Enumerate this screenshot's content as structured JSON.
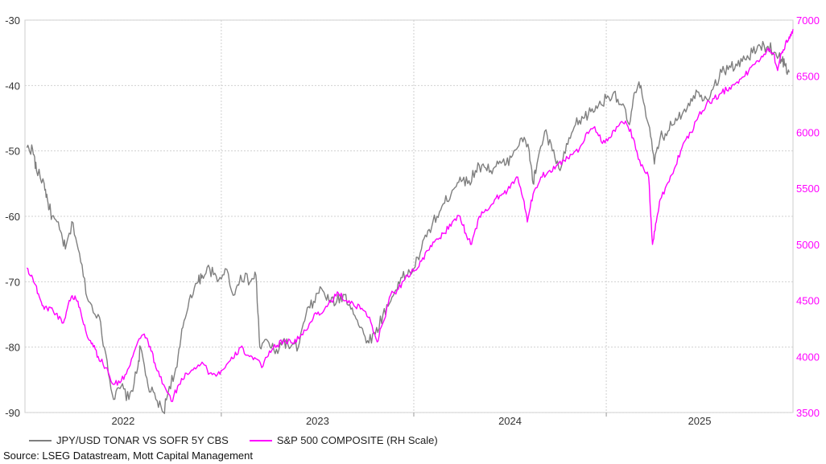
{
  "chart_data": {
    "type": "line",
    "title": "",
    "source": "Source: LSEG Datastream, Mott Capital Management",
    "x_labels": [
      "2022",
      "2023",
      "2024",
      "2025"
    ],
    "left_axis": {
      "min": -90,
      "max": -30,
      "ticks": [
        -30,
        -40,
        -50,
        -60,
        -70,
        -80,
        -90
      ],
      "color": "#333333"
    },
    "right_axis": {
      "min": 3500,
      "max": 7000,
      "ticks": [
        7000,
        6500,
        6000,
        5500,
        5000,
        4500,
        4000,
        3500
      ],
      "color": "#ff00ff"
    },
    "x_range": [
      2021.98,
      2025.97
    ],
    "series": [
      {
        "name": "JPY/USD TONAR VS SOFR 5Y CBS",
        "axis": "left",
        "color": "#7f7f7f",
        "points": [
          [
            2021.99,
            -49.5
          ],
          [
            2022.02,
            -49.8
          ],
          [
            2022.04,
            -53
          ],
          [
            2022.08,
            -55
          ],
          [
            2022.1,
            -58
          ],
          [
            2022.12,
            -60
          ],
          [
            2022.16,
            -62
          ],
          [
            2022.19,
            -65
          ],
          [
            2022.23,
            -61
          ],
          [
            2022.27,
            -67
          ],
          [
            2022.31,
            -73
          ],
          [
            2022.36,
            -75
          ],
          [
            2022.4,
            -81
          ],
          [
            2022.44,
            -88
          ],
          [
            2022.48,
            -86
          ],
          [
            2022.52,
            -88
          ],
          [
            2022.56,
            -84
          ],
          [
            2022.58,
            -80
          ],
          [
            2022.62,
            -86
          ],
          [
            2022.66,
            -88
          ],
          [
            2022.7,
            -90
          ],
          [
            2022.73,
            -86
          ],
          [
            2022.77,
            -83
          ],
          [
            2022.8,
            -77
          ],
          [
            2022.84,
            -72
          ],
          [
            2022.88,
            -70
          ],
          [
            2022.9,
            -69
          ],
          [
            2022.94,
            -68
          ],
          [
            2022.98,
            -70
          ],
          [
            2023.02,
            -68
          ],
          [
            2023.07,
            -72
          ],
          [
            2023.1,
            -69
          ],
          [
            2023.15,
            -70
          ],
          [
            2023.18,
            -69
          ],
          [
            2023.2,
            -80
          ],
          [
            2023.24,
            -79
          ],
          [
            2023.28,
            -81
          ],
          [
            2023.32,
            -79
          ],
          [
            2023.36,
            -80
          ],
          [
            2023.4,
            -80
          ],
          [
            2023.44,
            -75
          ],
          [
            2023.48,
            -73
          ],
          [
            2023.52,
            -71
          ],
          [
            2023.56,
            -73
          ],
          [
            2023.6,
            -73
          ],
          [
            2023.64,
            -72
          ],
          [
            2023.68,
            -74
          ],
          [
            2023.72,
            -77
          ],
          [
            2023.76,
            -79
          ],
          [
            2023.8,
            -78
          ],
          [
            2023.84,
            -75
          ],
          [
            2023.88,
            -73
          ],
          [
            2023.92,
            -70
          ],
          [
            2023.96,
            -69
          ],
          [
            2024.0,
            -68
          ],
          [
            2024.04,
            -65
          ],
          [
            2024.08,
            -62
          ],
          [
            2024.12,
            -60
          ],
          [
            2024.16,
            -58
          ],
          [
            2024.2,
            -56
          ],
          [
            2024.24,
            -54
          ],
          [
            2024.28,
            -55
          ],
          [
            2024.32,
            -53
          ],
          [
            2024.36,
            -52
          ],
          [
            2024.4,
            -53
          ],
          [
            2024.44,
            -52
          ],
          [
            2024.48,
            -52
          ],
          [
            2024.52,
            -50
          ],
          [
            2024.56,
            -48
          ],
          [
            2024.6,
            -50
          ],
          [
            2024.62,
            -55
          ],
          [
            2024.64,
            -52
          ],
          [
            2024.68,
            -47
          ],
          [
            2024.72,
            -50
          ],
          [
            2024.76,
            -53
          ],
          [
            2024.8,
            -49
          ],
          [
            2024.84,
            -46
          ],
          [
            2024.88,
            -45
          ],
          [
            2024.92,
            -44
          ],
          [
            2024.96,
            -43
          ],
          [
            2025.0,
            -42
          ],
          [
            2025.04,
            -41
          ],
          [
            2025.08,
            -43
          ],
          [
            2025.12,
            -46
          ],
          [
            2025.15,
            -41
          ],
          [
            2025.18,
            -40
          ],
          [
            2025.22,
            -46
          ],
          [
            2025.25,
            -52
          ],
          [
            2025.28,
            -48
          ],
          [
            2025.32,
            -47
          ],
          [
            2025.36,
            -45
          ],
          [
            2025.4,
            -44
          ],
          [
            2025.44,
            -42
          ],
          [
            2025.48,
            -41
          ],
          [
            2025.52,
            -42
          ],
          [
            2025.56,
            -40
          ],
          [
            2025.6,
            -38
          ],
          [
            2025.64,
            -37
          ],
          [
            2025.68,
            -37
          ],
          [
            2025.72,
            -36
          ],
          [
            2025.76,
            -35
          ],
          [
            2025.8,
            -34
          ],
          [
            2025.84,
            -34
          ],
          [
            2025.88,
            -35
          ],
          [
            2025.91,
            -36
          ],
          [
            2025.93,
            -37
          ],
          [
            2025.95,
            -38
          ]
        ]
      },
      {
        "name": "S&P 500 COMPOSITE (RH Scale)",
        "axis": "right",
        "color": "#ff00ff",
        "points": [
          [
            2021.99,
            4790
          ],
          [
            2022.02,
            4700
          ],
          [
            2022.05,
            4560
          ],
          [
            2022.08,
            4420
          ],
          [
            2022.11,
            4440
          ],
          [
            2022.14,
            4380
          ],
          [
            2022.18,
            4300
          ],
          [
            2022.21,
            4500
          ],
          [
            2022.24,
            4540
          ],
          [
            2022.27,
            4400
          ],
          [
            2022.3,
            4200
          ],
          [
            2022.33,
            4120
          ],
          [
            2022.36,
            4000
          ],
          [
            2022.4,
            3900
          ],
          [
            2022.44,
            3750
          ],
          [
            2022.48,
            3780
          ],
          [
            2022.52,
            3900
          ],
          [
            2022.56,
            4100
          ],
          [
            2022.6,
            4200
          ],
          [
            2022.63,
            4090
          ],
          [
            2022.66,
            3900
          ],
          [
            2022.7,
            3750
          ],
          [
            2022.74,
            3600
          ],
          [
            2022.78,
            3750
          ],
          [
            2022.82,
            3850
          ],
          [
            2022.86,
            3900
          ],
          [
            2022.9,
            3950
          ],
          [
            2022.94,
            3850
          ],
          [
            2022.98,
            3840
          ],
          [
            2023.02,
            3900
          ],
          [
            2023.06,
            3980
          ],
          [
            2023.1,
            4080
          ],
          [
            2023.14,
            4010
          ],
          [
            2023.18,
            3980
          ],
          [
            2023.21,
            3900
          ],
          [
            2023.25,
            4050
          ],
          [
            2023.29,
            4100
          ],
          [
            2023.33,
            4150
          ],
          [
            2023.37,
            4120
          ],
          [
            2023.41,
            4180
          ],
          [
            2023.45,
            4250
          ],
          [
            2023.49,
            4390
          ],
          [
            2023.53,
            4400
          ],
          [
            2023.57,
            4500
          ],
          [
            2023.61,
            4560
          ],
          [
            2023.65,
            4500
          ],
          [
            2023.69,
            4450
          ],
          [
            2023.73,
            4430
          ],
          [
            2023.77,
            4350
          ],
          [
            2023.81,
            4130
          ],
          [
            2023.84,
            4300
          ],
          [
            2023.88,
            4550
          ],
          [
            2023.92,
            4600
          ],
          [
            2023.96,
            4720
          ],
          [
            2024.0,
            4760
          ],
          [
            2024.04,
            4850
          ],
          [
            2024.08,
            4950
          ],
          [
            2024.12,
            5050
          ],
          [
            2024.16,
            5100
          ],
          [
            2024.2,
            5200
          ],
          [
            2024.24,
            5250
          ],
          [
            2024.27,
            5100
          ],
          [
            2024.3,
            5000
          ],
          [
            2024.34,
            5250
          ],
          [
            2024.38,
            5300
          ],
          [
            2024.42,
            5400
          ],
          [
            2024.46,
            5450
          ],
          [
            2024.5,
            5500
          ],
          [
            2024.54,
            5600
          ],
          [
            2024.57,
            5400
          ],
          [
            2024.59,
            5200
          ],
          [
            2024.62,
            5450
          ],
          [
            2024.66,
            5600
          ],
          [
            2024.7,
            5650
          ],
          [
            2024.74,
            5700
          ],
          [
            2024.78,
            5750
          ],
          [
            2024.82,
            5800
          ],
          [
            2024.86,
            5850
          ],
          [
            2024.9,
            6000
          ],
          [
            2024.94,
            6050
          ],
          [
            2024.98,
            5900
          ],
          [
            2025.02,
            5950
          ],
          [
            2025.06,
            6050
          ],
          [
            2025.1,
            6100
          ],
          [
            2025.14,
            5950
          ],
          [
            2025.18,
            5700
          ],
          [
            2025.22,
            5600
          ],
          [
            2025.24,
            5000
          ],
          [
            2025.26,
            5200
          ],
          [
            2025.28,
            5400
          ],
          [
            2025.32,
            5550
          ],
          [
            2025.36,
            5700
          ],
          [
            2025.4,
            5900
          ],
          [
            2025.44,
            6000
          ],
          [
            2025.48,
            6150
          ],
          [
            2025.52,
            6250
          ],
          [
            2025.56,
            6300
          ],
          [
            2025.6,
            6350
          ],
          [
            2025.64,
            6400
          ],
          [
            2025.68,
            6450
          ],
          [
            2025.72,
            6500
          ],
          [
            2025.76,
            6600
          ],
          [
            2025.8,
            6650
          ],
          [
            2025.84,
            6750
          ],
          [
            2025.87,
            6700
          ],
          [
            2025.89,
            6550
          ],
          [
            2025.91,
            6700
          ],
          [
            2025.93,
            6780
          ],
          [
            2025.95,
            6850
          ],
          [
            2025.97,
            6920
          ]
        ]
      }
    ]
  }
}
